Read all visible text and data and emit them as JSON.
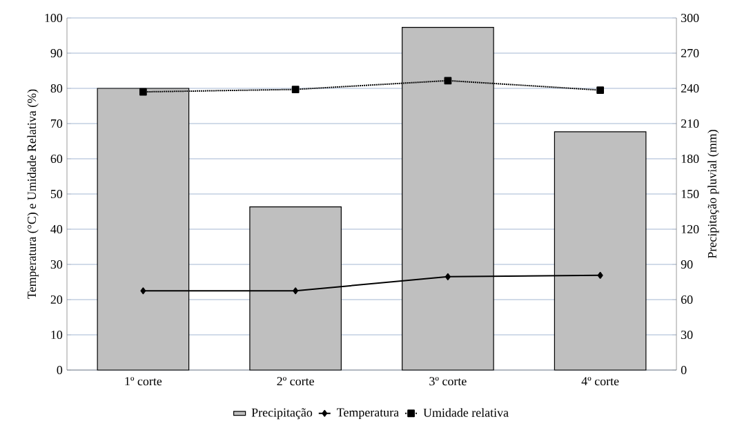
{
  "chart_data": {
    "type": "bar",
    "ylabel": "Temperatura (°C) e Umidade Relativa (%)",
    "y2label": "Precipitação pluvial (mm)",
    "categories": [
      "1º corte",
      "2º corte",
      "3º corte",
      "4º corte"
    ],
    "series": [
      {
        "name": "Precipitação",
        "axis": "y2",
        "color": "#bfbfbf",
        "values": [
          240,
          139,
          292,
          203
        ]
      },
      {
        "name": "Temperatura",
        "type": "line",
        "color": "#000000",
        "marker": "diamond",
        "line_style": "solid",
        "values": [
          22.5,
          22.5,
          26.5,
          26.9
        ]
      },
      {
        "name": "Umidade relativa",
        "type": "line",
        "color": "#000000",
        "marker": "square",
        "line_style": "dotted",
        "values": [
          79.0,
          79.7,
          82.2,
          79.5
        ]
      }
    ],
    "ylim": [
      0,
      100
    ],
    "yticks": [
      0,
      10,
      20,
      30,
      40,
      50,
      60,
      70,
      80,
      90,
      100
    ],
    "y2lim": [
      0,
      300
    ],
    "y2ticks": [
      0,
      30,
      60,
      90,
      120,
      150,
      180,
      210,
      240,
      270,
      300
    ],
    "grid": "y",
    "legend": "bottom"
  }
}
